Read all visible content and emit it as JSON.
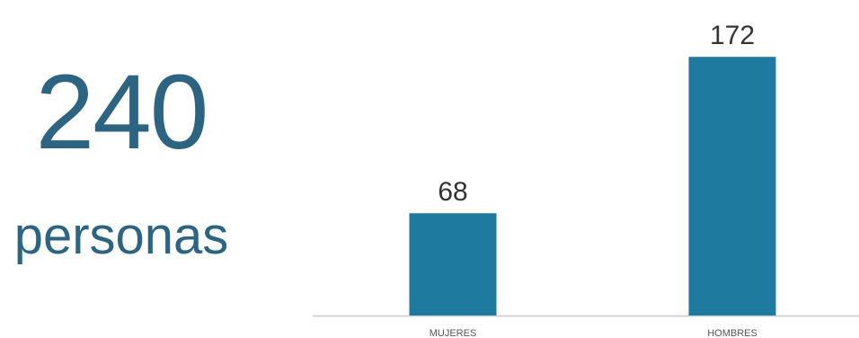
{
  "summary": {
    "total": "240",
    "unit": "personas"
  },
  "colors": {
    "text": "#2c6482",
    "bar": "#1f7aa0",
    "baseline": "#d6d6d6",
    "value_label": "#333333",
    "category_label": "#555555"
  },
  "chart_data": {
    "type": "bar",
    "categories": [
      "MUJERES",
      "HOMBRES"
    ],
    "values": [
      68,
      172
    ],
    "title": "",
    "xlabel": "",
    "ylabel": "",
    "ylim": [
      0,
      180
    ],
    "grid": false,
    "legend": "none"
  }
}
